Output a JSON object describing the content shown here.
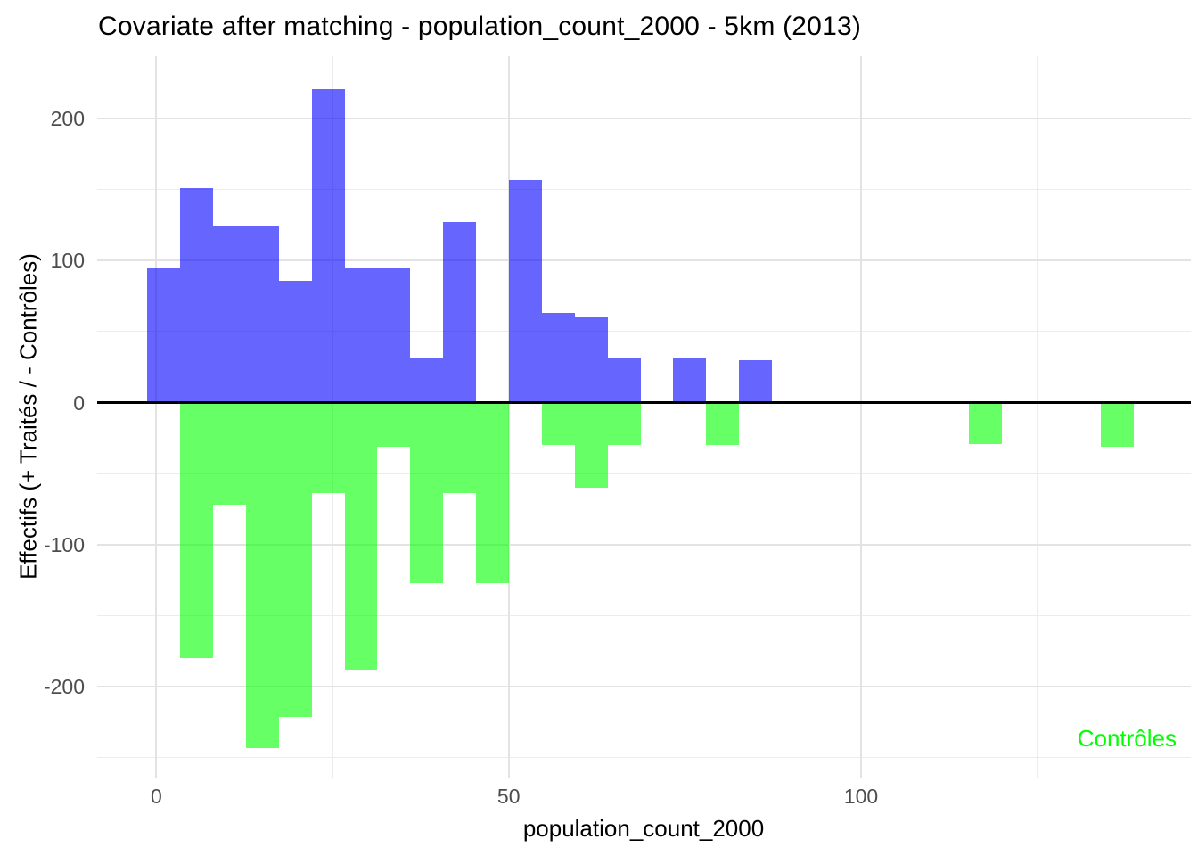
{
  "title": "Covariate after matching - population_count_2000 - 5km (2013)",
  "x_axis": {
    "label": "population_count_2000",
    "tick_values": [
      0,
      50,
      100
    ],
    "tick_labels": [
      "0",
      "50",
      "100"
    ]
  },
  "y_axis": {
    "label": "Effectifs (+ Traités / - Contrôles)",
    "tick_values": [
      200,
      100,
      0,
      -100,
      -200
    ],
    "tick_labels": [
      "200",
      "100",
      "0",
      "-100",
      "-200"
    ]
  },
  "annotation": {
    "text": "Contrôles",
    "color": "#00FF00"
  },
  "colors": {
    "treated_fill": "rgba(0,0,255,0.6)",
    "treated_hex_on_white": "#6666FF",
    "controls_fill": "rgba(0,255,0,0.6)",
    "controls_hex_on_white": "#66FF66",
    "zero_line": "#000000",
    "grid_major": "#e3e3e3",
    "grid_minor": "#ececec",
    "tick_text": "#4d4d4d",
    "title_text": "#000000",
    "background": "#ffffff"
  },
  "chart_data": {
    "type": "bar",
    "subtype": "back-to-back mirrored histogram (positive bars = Traités, negative bars = Contrôles)",
    "title": "Covariate after matching - population_count_2000 - 5km (2013)",
    "xlabel": "population_count_2000",
    "ylabel": "Effectifs (+ Traités / - Contrôles)",
    "xlim": [
      -8.4,
      146.8
    ],
    "ylim": [
      -264,
      244
    ],
    "grid": true,
    "legend_position": "annotation bottom-right",
    "x_major_gridlines": [
      0,
      50,
      100
    ],
    "x_minor_gridlines": [
      25,
      75,
      125
    ],
    "y_major_gridlines": [
      200,
      100,
      -100,
      -200
    ],
    "y_minor_gridlines": [
      150,
      50,
      -50,
      -150,
      -250
    ],
    "zero_reference_line": 0,
    "bin_width": 4.66,
    "bin_edges": [
      -1.27,
      3.39,
      8.06,
      12.72,
      17.39,
      22.05,
      26.72,
      31.38,
      36.05,
      40.71,
      45.38,
      50.04,
      54.7,
      59.37,
      64.03,
      68.7,
      73.36,
      78.02,
      82.69,
      87.35,
      92.02,
      96.68,
      101.35,
      106.01,
      110.68,
      115.34,
      120.0,
      124.67,
      129.33,
      134.0,
      138.66
    ],
    "series": [
      {
        "name": "Traités",
        "orientation": "up",
        "color": "rgba(0,0,255,0.6)",
        "values": [
          95,
          151,
          124,
          125,
          86,
          221,
          95,
          95,
          31,
          127,
          0,
          157,
          63,
          60,
          31,
          0,
          31,
          0,
          30,
          0,
          0,
          0,
          0,
          0,
          0,
          0,
          0,
          0,
          0,
          0
        ]
      },
      {
        "name": "Contrôles",
        "orientation": "down",
        "color": "rgba(0,255,0,0.6)",
        "values": [
          0,
          -180,
          -72,
          -243,
          -221,
          -64,
          -188,
          -31,
          -127,
          -64,
          -127,
          0,
          -30,
          -60,
          -30,
          0,
          0,
          -30,
          0,
          0,
          0,
          0,
          0,
          0,
          0,
          -29,
          0,
          0,
          0,
          -31
        ]
      }
    ]
  }
}
